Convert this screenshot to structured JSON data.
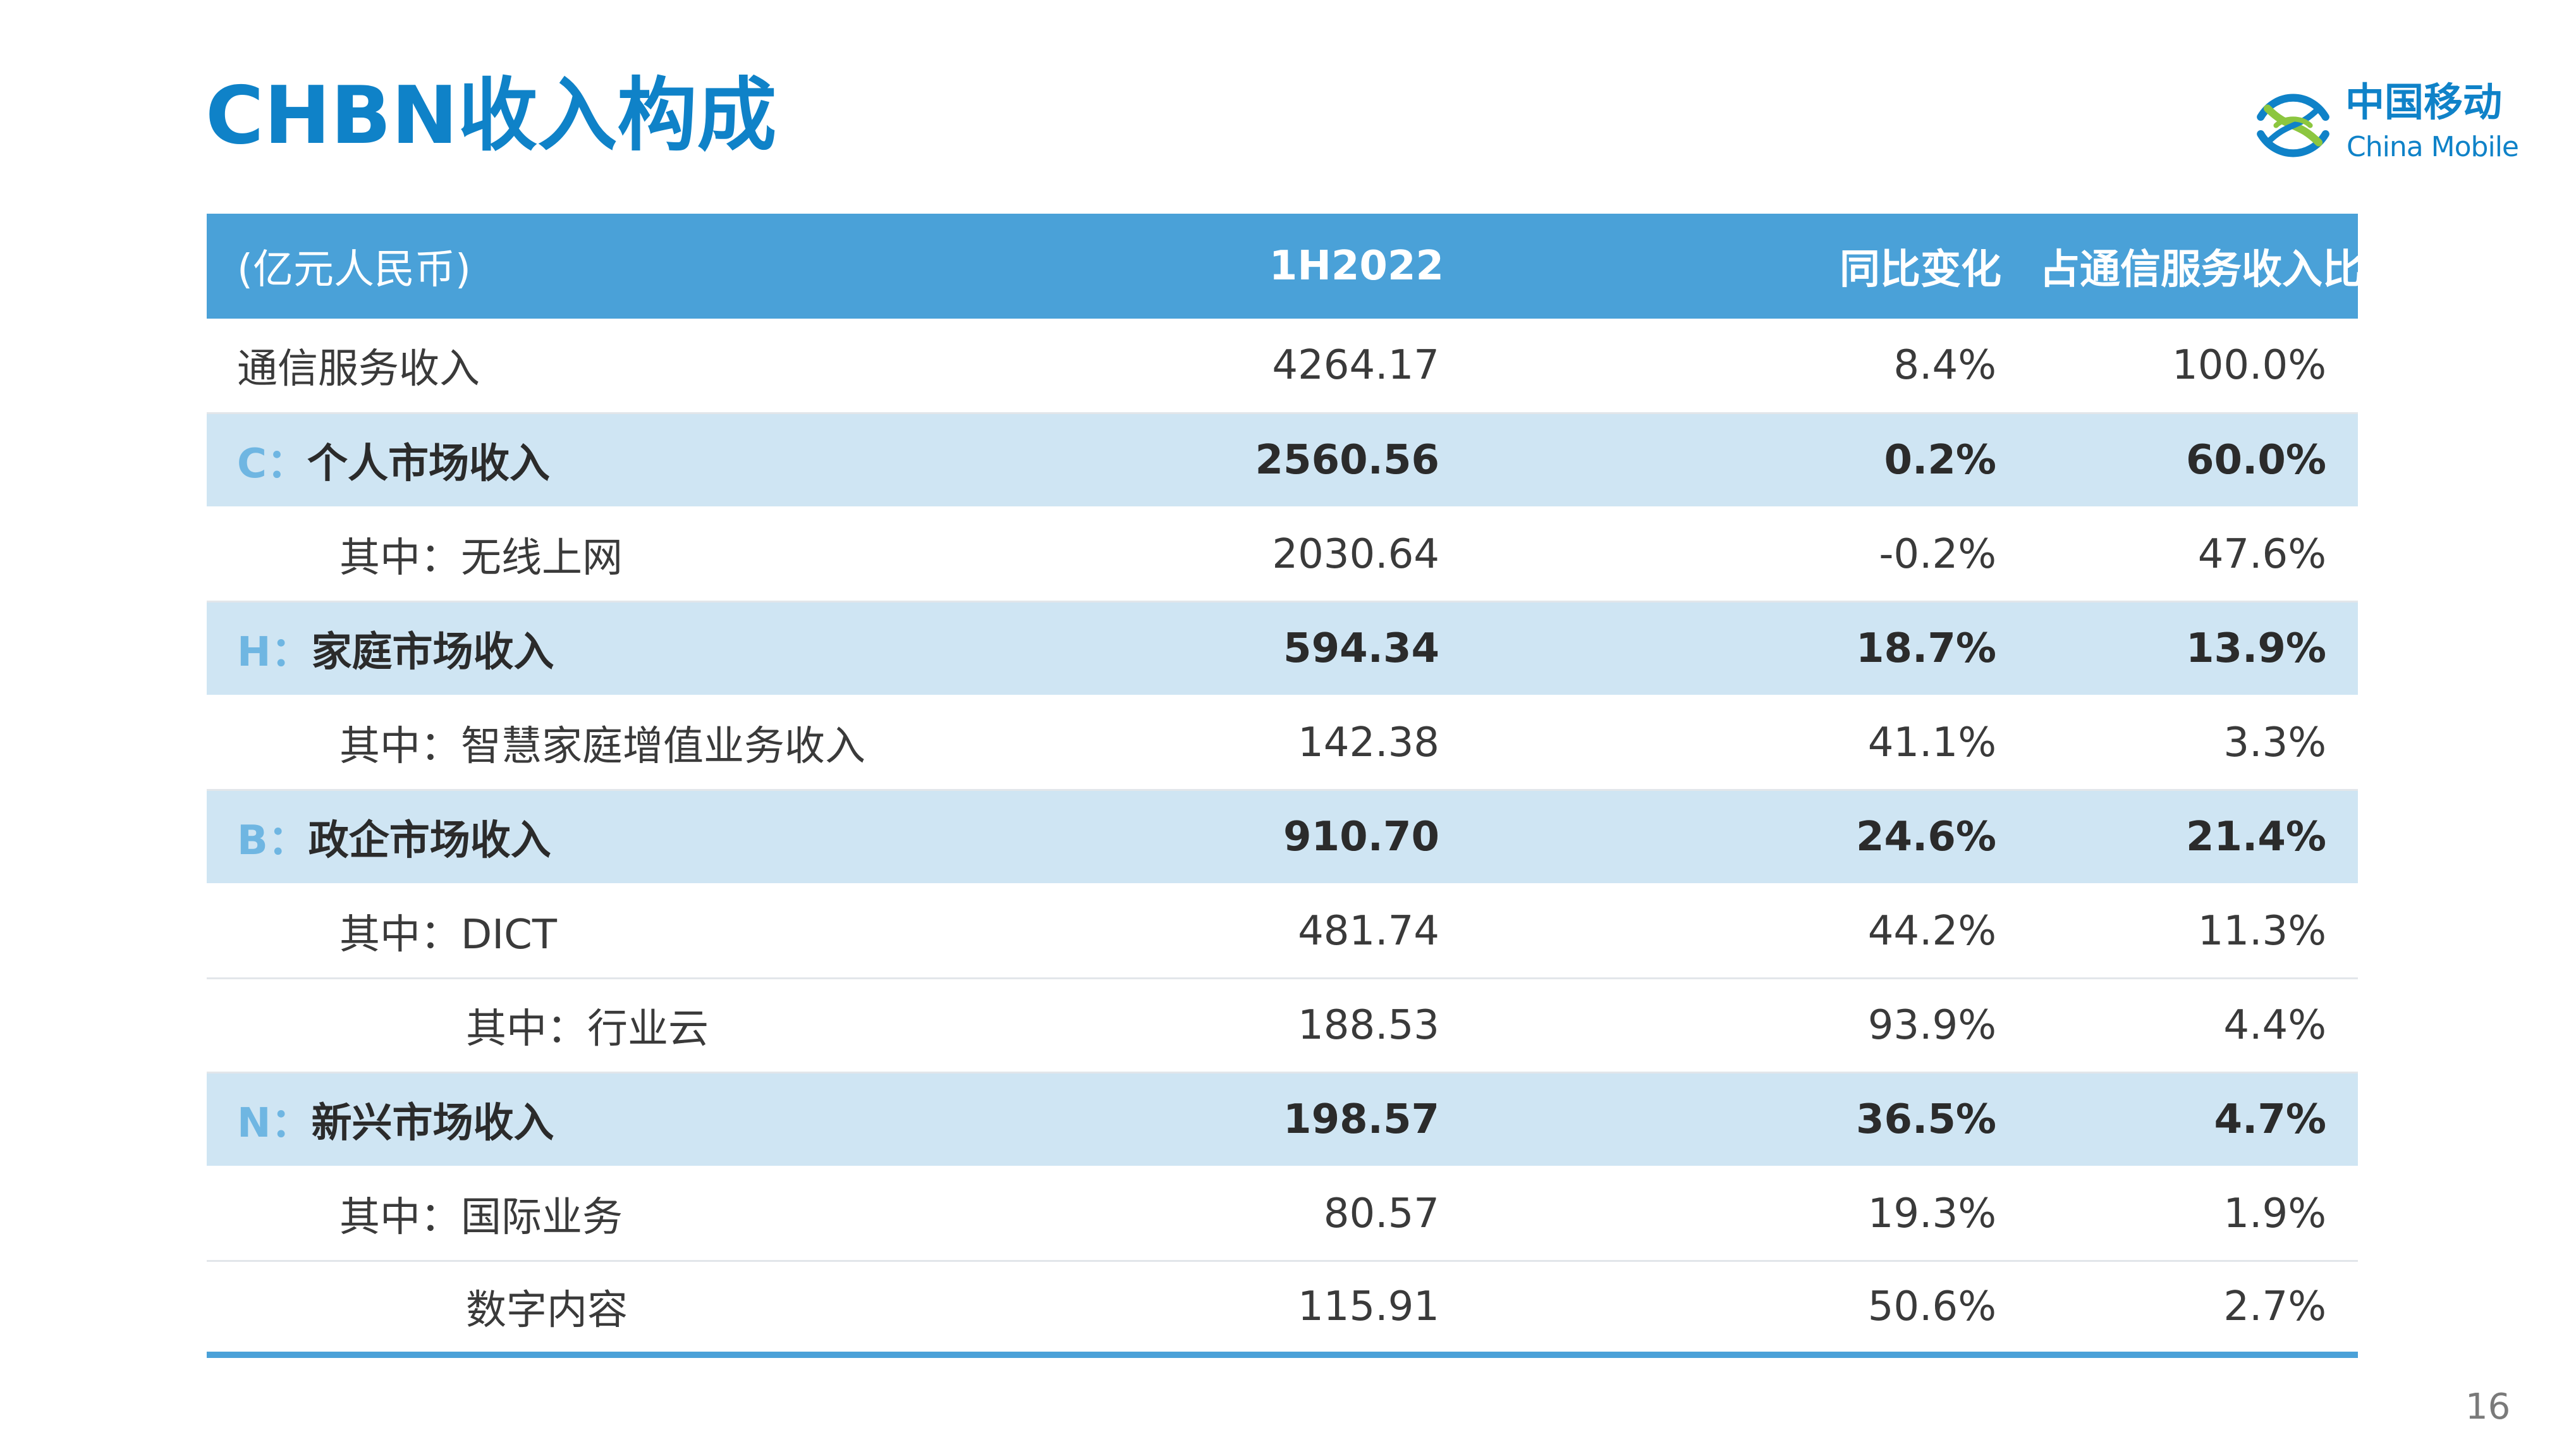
{
  "title": "CHBN收入构成",
  "logo": {
    "cn": "中国移动",
    "en": "China Mobile",
    "icon": "china-mobile-logo-icon"
  },
  "colors": {
    "title": "#0f82c8",
    "header_bg": "#4aa1d8",
    "highlight_row_bg": "#cfe5f3",
    "prefix": "#6fb6e2"
  },
  "table": {
    "headers": [
      "(亿元人民币)",
      "1H2022",
      "同比变化",
      "占通信服务收入比"
    ],
    "rows": [
      {
        "prefix": "",
        "label": "通信服务收入",
        "value": "4264.17",
        "yoy": "8.4%",
        "share": "100.0%",
        "level": 0,
        "highlight": false
      },
      {
        "prefix": "C：",
        "label": "个人市场收入",
        "value": "2560.56",
        "yoy": "0.2%",
        "share": "60.0%",
        "level": 0,
        "highlight": true
      },
      {
        "prefix": "",
        "label": "其中：无线上网",
        "value": "2030.64",
        "yoy": "-0.2%",
        "share": "47.6%",
        "level": 1,
        "highlight": false
      },
      {
        "prefix": "H：",
        "label": "家庭市场收入",
        "value": "594.34",
        "yoy": "18.7%",
        "share": "13.9%",
        "level": 0,
        "highlight": true
      },
      {
        "prefix": "",
        "label": "其中：智慧家庭增值业务收入",
        "value": "142.38",
        "yoy": "41.1%",
        "share": "3.3%",
        "level": 1,
        "highlight": false
      },
      {
        "prefix": "B：",
        "label": "政企市场收入",
        "value": "910.70",
        "yoy": "24.6%",
        "share": "21.4%",
        "level": 0,
        "highlight": true
      },
      {
        "prefix": "",
        "label": "其中：DICT",
        "value": "481.74",
        "yoy": "44.2%",
        "share": "11.3%",
        "level": 1,
        "highlight": false
      },
      {
        "prefix": "",
        "label": "其中：行业云",
        "value": "188.53",
        "yoy": "93.9%",
        "share": "4.4%",
        "level": 2,
        "highlight": false
      },
      {
        "prefix": "N：",
        "label": "新兴市场收入",
        "value": "198.57",
        "yoy": "36.5%",
        "share": "4.7%",
        "level": 0,
        "highlight": true
      },
      {
        "prefix": "",
        "label": "其中：国际业务",
        "value": "80.57",
        "yoy": "19.3%",
        "share": "1.9%",
        "level": 1,
        "highlight": false
      },
      {
        "prefix": "",
        "label": "数字内容",
        "value": "115.91",
        "yoy": "50.6%",
        "share": "2.7%",
        "level": 2,
        "highlight": false
      }
    ]
  },
  "page_number": "16"
}
